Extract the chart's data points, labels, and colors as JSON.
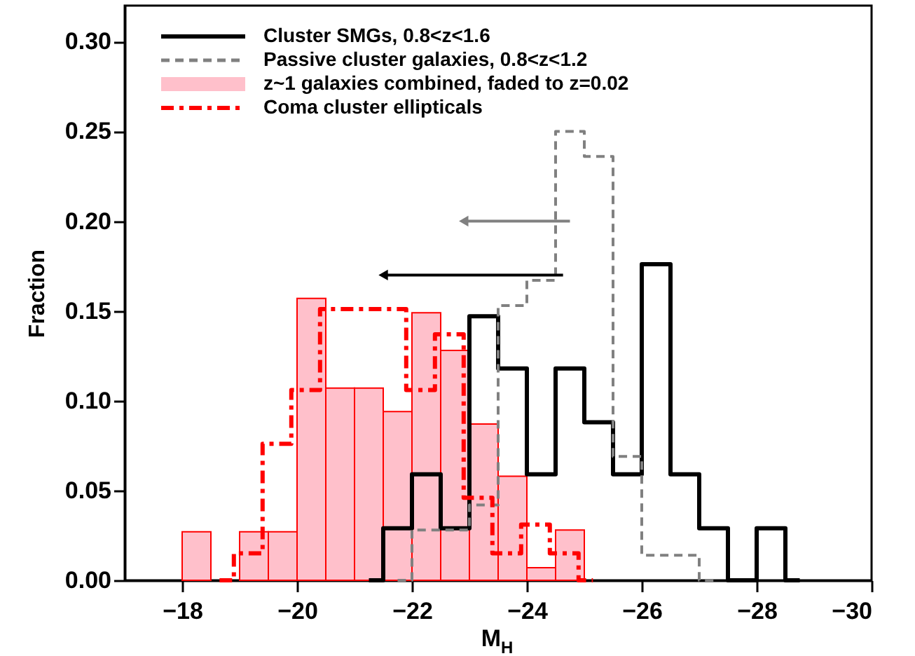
{
  "chart_data": {
    "type": "histogram",
    "xlabel": "M$_{H}$",
    "ylabel": "Fraction",
    "xlim": [
      -17,
      -30
    ],
    "xticks": [
      -18,
      -20,
      -22,
      -24,
      -26,
      -28,
      -30
    ],
    "ylim": [
      0,
      0.32
    ],
    "yticks": [
      {
        "value": 0,
        "label": "0.00"
      },
      {
        "value": 0.05,
        "label": "0.05"
      },
      {
        "value": 0.1,
        "label": "0.10"
      },
      {
        "value": 0.15,
        "label": "0.15"
      },
      {
        "value": 0.2,
        "label": "0.20"
      },
      {
        "value": 0.25,
        "label": "0.25"
      },
      {
        "value": 0.3,
        "label": "0.30"
      }
    ],
    "grid": false,
    "legend": "top left",
    "series": [
      {
        "name": "Cluster SMGs, 0.8<z<1.6",
        "type": "step",
        "color": "#000000",
        "line_style": "solid",
        "x": [
          -21.25,
          -21.75,
          -22.25,
          -22.75,
          -23.25,
          -23.75,
          -24.25,
          -24.75,
          -25.25,
          -25.75,
          -26.25,
          -26.75,
          -27.25,
          -27.75,
          -28.25,
          -28.75
        ],
        "values": [
          0,
          0.029,
          0.059,
          0.029,
          0.147,
          0.118,
          0.059,
          0.118,
          0.088,
          0.059,
          0.176,
          0.059,
          0.029,
          0,
          0.029,
          0
        ]
      },
      {
        "name": "Passive cluster galaxies, 0.8<z<1.2",
        "type": "step",
        "color": "#808080",
        "line_style": "dashed",
        "x": [
          -21.75,
          -22.25,
          -22.75,
          -23.25,
          -23.75,
          -24.25,
          -24.75,
          -25.25,
          -25.75,
          -26.25,
          -26.75,
          -27.25
        ],
        "values": [
          0,
          0.028,
          0.028,
          0.042,
          0.153,
          0.167,
          0.25,
          0.236,
          0.069,
          0.014,
          0.014,
          0
        ]
      },
      {
        "name": "z~1 galaxies combined, faded to z=0.02",
        "color": "#ffc0cb",
        "bins": [
          -18,
          -18.5,
          -19,
          -19.5,
          -20,
          -20.5,
          -21,
          -21.5,
          -22,
          -22.5,
          -23,
          -23.5,
          -24,
          -24.5,
          -25
        ],
        "values": [
          0.027,
          0,
          0.027,
          0.027,
          0.157,
          0.107,
          0.107,
          0.094,
          0.149,
          0.128,
          0.087,
          0.058,
          0.007,
          0.028
        ]
      },
      {
        "name": "Coma cluster ellipticals",
        "type": "step",
        "color": "#ff0000",
        "line_style": "dashdot",
        "x": [
          -18.65,
          -19.15,
          -19.65,
          -20.15,
          -20.65,
          -21.15,
          -21.65,
          -22.15,
          -22.65,
          -23.15,
          -23.65,
          -24.15,
          -24.65,
          -25.15
        ],
        "values": [
          0,
          0.015,
          0.076,
          0.106,
          0.151,
          0.151,
          0.151,
          0.106,
          0.137,
          0.046,
          0.015,
          0.031,
          0.015,
          0
        ]
      },
      {
        "type": "line",
        "color": "#000000",
        "x": [
          -24.63,
          -21.5
        ],
        "values": [
          0.17,
          0.17
        ]
      },
      {
        "type": "line",
        "color": "#808080",
        "x": [
          -24.75,
          -22.9
        ],
        "values": [
          0.2,
          0.2
        ]
      }
    ]
  }
}
